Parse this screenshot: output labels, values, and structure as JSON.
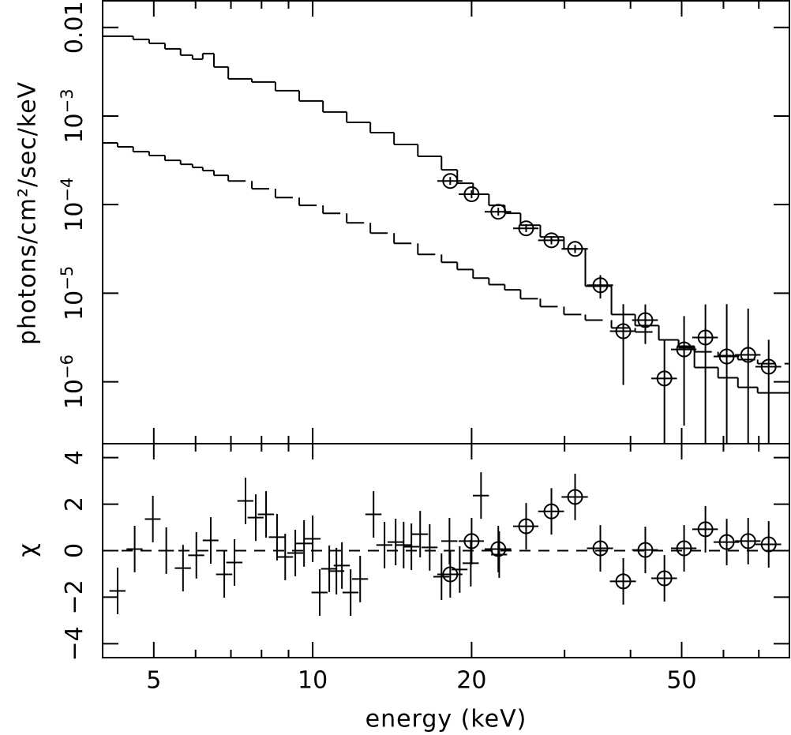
{
  "chart_data": [
    {
      "type": "step",
      "ylabel": "photons/cm²/sec/keV",
      "xlog": true,
      "ylog": true,
      "xlim": [
        4,
        80
      ],
      "ylim": [
        2e-07,
        0.02
      ],
      "yticks": [
        0.01,
        {
          "value": 0.001,
          "label": "10",
          "exponent": "−3"
        },
        {
          "value": 0.0001,
          "label": "10",
          "exponent": "−4"
        },
        {
          "value": 1e-05,
          "label": "10",
          "exponent": "−5"
        },
        {
          "value": 1e-06,
          "label": "10",
          "exponent": "−6"
        }
      ],
      "series": [
        {
          "style": "step",
          "color": "#000000",
          "dashed": false,
          "bins": [
            4.0,
            4.27,
            4.57,
            4.9,
            5.25,
            5.62,
            5.92,
            6.19,
            6.5,
            6.92,
            7.67,
            8.5,
            9.43,
            10.46,
            11.6,
            12.86,
            14.26,
            15.82,
            17.54,
            18.79,
            20.13,
            21.57,
            23.11,
            24.76,
            26.99,
            29.92,
            32.85,
            36.81,
            40.82,
            45.26,
            49.33,
            52.86,
            58.61,
            63.9,
            69.64,
            80
          ],
          "values": [
            0.00797,
            0.00797,
            0.00734,
            0.00662,
            0.00574,
            0.00487,
            0.00439,
            0.00507,
            0.00358,
            0.00263,
            0.00242,
            0.00193,
            0.00148,
            0.00111,
            0.000849,
            0.000649,
            0.000477,
            0.000351,
            0.000247,
            0.000174,
            0.000131,
            9.8e-05,
            7.98e-05,
            5.86e-05,
            4.31e-05,
            3.16e-05,
            1.2e-05,
            5.74e-06,
            4.31e-06,
            2.97e-06,
            2.42e-06,
            1.45e-06,
            1.11e-06,
            8.66e-07,
            7.5e-07
          ]
        },
        {
          "style": "step",
          "color": "#000000",
          "dashed": true,
          "bins": [
            4.0,
            4.27,
            4.57,
            4.9,
            5.25,
            5.62,
            5.92,
            6.19,
            6.5,
            6.92,
            7.67,
            8.5,
            9.43,
            10.46,
            11.6,
            12.86,
            14.26,
            15.82,
            17.54,
            18.79,
            20.13,
            21.57,
            23.11,
            24.76,
            26.99,
            29.92,
            32.85,
            36.81,
            40.82,
            45.26,
            49.33,
            52.86,
            58.61,
            63.9,
            69.64,
            80
          ],
          "values": [
            0.000497,
            0.000449,
            0.000396,
            0.000358,
            0.000316,
            0.000285,
            0.000263,
            0.000242,
            0.000214,
            0.000185,
            0.000151,
            0.00012,
            9.8e-05,
            7.97e-05,
            6.23e-05,
            4.77e-05,
            3.65e-05,
            2.74e-05,
            2.23e-05,
            1.85e-05,
            1.48e-05,
            1.25e-05,
            1.09e-05,
            8.66e-06,
            7.05e-06,
            5.74e-06,
            4.97e-06,
            4.05e-06,
            3.65e-06,
            2.97e-06,
            2.52e-06,
            2.18e-06,
            1.97e-06,
            1.78e-06,
            1.6e-06
          ]
        },
        {
          "style": "points",
          "marker": "circle",
          "color": "#000000",
          "x": [
            18.22,
            20.0,
            22.47,
            25.37,
            28.33,
            31.41,
            35.07,
            38.76,
            42.67,
            46.38,
            50.53,
            55.46,
            60.86,
            66.82,
            73.08
          ],
          "xerr": [
            1.0,
            1.1,
            1.3,
            1.4,
            1.6,
            1.8,
            2.0,
            2.2,
            2.4,
            2.6,
            2.8,
            3.1,
            3.4,
            3.7,
            4.1
          ],
          "values": [
            0.000185,
            0.000131,
            8.31e-05,
            5.4e-05,
            3.96e-05,
            3.16e-05,
            1.23e-05,
            3.72e-06,
            4.97e-06,
            1.09e-06,
            2.32e-06,
            3.16e-06,
            1.93e-06,
            2.01e-06,
            1.48e-06
          ],
          "yerr_plus": [
            2e-05,
            1.4e-05,
            9e-06,
            6e-06,
            4e-06,
            3.5e-06,
            3.7e-06,
            3.8e-06,
            2.5e-06,
            1.9e-06,
            3.2e-06,
            4.3e-06,
            5.6e-06,
            4.7e-06,
            1.5e-06
          ],
          "yerr_minus": [
            1.8e-05,
            1.3e-05,
            8e-06,
            5e-06,
            4e-06,
            3.2e-06,
            3.6e-06,
            2.8e-06,
            2.3e-06,
            1.09e-06,
            2e-06,
            3.16e-06,
            1.93e-06,
            2.01e-06,
            1.48e-06
          ]
        }
      ]
    },
    {
      "type": "scatter",
      "xlabel": "energy (keV)",
      "ylabel": "χ",
      "xlog": true,
      "ylog": false,
      "zero_line": true,
      "xlim": [
        4,
        80
      ],
      "ylim": [
        -4.6,
        4.6
      ],
      "xticks": [
        5,
        10,
        20,
        50
      ],
      "xminor": [
        4,
        6,
        7,
        8,
        9,
        30,
        40,
        60,
        70,
        80
      ],
      "yticks": [
        {
          "value": -4,
          "label": "−4"
        },
        {
          "value": -2,
          "label": "−2"
        },
        0,
        2,
        4
      ],
      "series": [
        {
          "style": "points",
          "marker": "none",
          "color": "#000000",
          "yerr": 1,
          "x": [
            4.27,
            4.6,
            4.98,
            5.28,
            5.68,
            6.02,
            6.41,
            6.8,
            7.11,
            7.46,
            7.8,
            8.16,
            8.56,
            8.87,
            9.27,
            9.63,
            10.0,
            10.31,
            10.75,
            11.09,
            11.36,
            11.8,
            12.3,
            13.04,
            13.68,
            14.36,
            14.87,
            15.38,
            15.98,
            16.66,
            17.54,
            18.16,
            18.99,
            19.93,
            20.84,
            22.56
          ],
          "xerr": [
            0.15,
            0.16,
            0.17,
            0.18,
            0.2,
            0.21,
            0.22,
            0.24,
            0.25,
            0.26,
            0.27,
            0.29,
            0.3,
            0.31,
            0.32,
            0.34,
            0.35,
            0.36,
            0.38,
            0.39,
            0.4,
            0.41,
            0.43,
            0.46,
            0.48,
            0.5,
            0.52,
            0.54,
            0.56,
            0.58,
            0.61,
            0.64,
            0.66,
            0.7,
            0.73,
            0.79
          ],
          "values": [
            -1.73,
            0.07,
            1.36,
            0,
            -0.75,
            -0.2,
            0.44,
            -1.02,
            -0.51,
            2.14,
            1.42,
            1.56,
            0.58,
            -0.27,
            -0.1,
            0.31,
            0.51,
            -1.8,
            -0.78,
            -0.88,
            -0.64,
            -1.8,
            -1.22,
            1.56,
            0.24,
            0.37,
            0.24,
            0.17,
            0.71,
            0.14,
            -1.12,
            0.41,
            -0.81,
            -0.54,
            2.37,
            -0.17
          ]
        },
        {
          "style": "points",
          "marker": "circle",
          "color": "#000000",
          "yerr": 1,
          "x": [
            18.22,
            20.0,
            22.47,
            25.37,
            28.33,
            31.41,
            35.07,
            38.76,
            42.67,
            46.38,
            50.53,
            55.46,
            60.86,
            66.82,
            73.08
          ],
          "xerr": [
            1.0,
            1.1,
            1.3,
            1.4,
            1.6,
            1.8,
            2.0,
            2.2,
            2.4,
            2.6,
            2.8,
            3.1,
            3.4,
            3.7,
            4.1
          ],
          "values": [
            -1.02,
            0.41,
            0.07,
            1.05,
            1.69,
            2.31,
            0.1,
            -1.32,
            0.03,
            -1.19,
            0.1,
            0.92,
            0.37,
            0.41,
            0.27
          ]
        }
      ]
    }
  ]
}
